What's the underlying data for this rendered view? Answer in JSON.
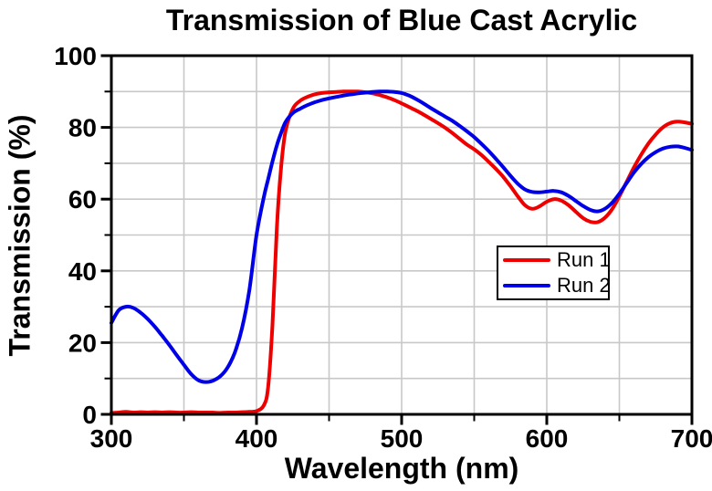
{
  "title": "Transmission of Blue Cast Acrylic",
  "axes": {
    "x": {
      "label": "Wavelength (nm)",
      "min": 300,
      "max": 700,
      "major_ticks": [
        300,
        400,
        500,
        600,
        700
      ],
      "minor_ticks": [
        350,
        450,
        550,
        650
      ],
      "gridlines": [
        350,
        400,
        450,
        500,
        550,
        600,
        650
      ]
    },
    "y": {
      "label": "Transmission (%)",
      "min": 0,
      "max": 100,
      "major_ticks": [
        0,
        20,
        40,
        60,
        80,
        100
      ],
      "minor_ticks": [
        10,
        30,
        50,
        70,
        90
      ],
      "gridlines": [
        10,
        20,
        30,
        40,
        50,
        60,
        70,
        80,
        90
      ]
    }
  },
  "legend": {
    "items": [
      {
        "label": "Run 1",
        "color": "#ef0000"
      },
      {
        "label": "Run 2",
        "color": "#0000e8"
      }
    ]
  },
  "colors": {
    "background": "#ffffff",
    "axis": "#000000",
    "grid": "#c8c8c8",
    "run1": "#ef0000",
    "run2": "#0000e8"
  },
  "chart_data": {
    "type": "line",
    "title": "Transmission of Blue Cast Acrylic",
    "xlabel": "Wavelength (nm)",
    "ylabel": "Transmission (%)",
    "xlim": [
      300,
      700
    ],
    "ylim": [
      0,
      100
    ],
    "grid": true,
    "legend_position": "center-right",
    "x": [
      300,
      305,
      310,
      315,
      320,
      325,
      330,
      335,
      340,
      345,
      350,
      355,
      360,
      365,
      370,
      375,
      380,
      385,
      390,
      395,
      400,
      405,
      408,
      411,
      414,
      417,
      420,
      425,
      430,
      435,
      440,
      445,
      450,
      455,
      460,
      465,
      470,
      475,
      480,
      485,
      490,
      495,
      500,
      505,
      510,
      515,
      520,
      525,
      530,
      535,
      540,
      545,
      550,
      555,
      560,
      565,
      570,
      575,
      580,
      585,
      590,
      595,
      600,
      605,
      610,
      615,
      620,
      625,
      630,
      635,
      640,
      645,
      650,
      655,
      660,
      665,
      670,
      675,
      680,
      685,
      690,
      695,
      700
    ],
    "series": [
      {
        "name": "Run 1",
        "color": "#ef0000",
        "values": [
          0.4,
          0.5,
          0.7,
          0.5,
          0.6,
          0.5,
          0.6,
          0.5,
          0.6,
          0.5,
          0.5,
          0.6,
          0.5,
          0.5,
          0.5,
          0.4,
          0.5,
          0.5,
          0.6,
          0.7,
          0.9,
          2.5,
          7.5,
          25,
          52,
          69,
          79,
          85.2,
          87.4,
          88.5,
          89.2,
          89.6,
          89.8,
          89.9,
          90,
          90,
          90,
          89.8,
          89.5,
          89,
          88.4,
          87.6,
          86.7,
          85.7,
          84.7,
          83.6,
          82.4,
          81.2,
          79.9,
          78.4,
          76.8,
          75.2,
          73.9,
          72.3,
          70.4,
          68.4,
          66.2,
          63.6,
          60.8,
          58.3,
          57.3,
          58,
          59.3,
          60,
          59.6,
          58.3,
          56.5,
          54.7,
          53.7,
          53.6,
          54.8,
          57.2,
          60.8,
          64.8,
          68.8,
          72.4,
          75.5,
          78,
          80,
          81.2,
          81.6,
          81.4,
          81
        ]
      },
      {
        "name": "Run 2",
        "color": "#0000e8",
        "values": [
          25.5,
          29,
          30,
          29.7,
          28.4,
          26.6,
          24.4,
          21.9,
          19.3,
          16.5,
          13.8,
          11.2,
          9.5,
          9,
          9.4,
          10.6,
          13,
          17.2,
          24,
          34.5,
          50,
          60.5,
          65.5,
          70.5,
          75,
          78.5,
          81.5,
          84,
          85.2,
          86.2,
          87,
          87.6,
          88.1,
          88.5,
          88.9,
          89.2,
          89.5,
          89.7,
          89.9,
          90,
          90,
          89.9,
          89.6,
          88.9,
          87.9,
          86.7,
          85.4,
          84.2,
          83,
          81.8,
          80.4,
          78.9,
          77.3,
          75.4,
          73.4,
          71.2,
          68.9,
          66.5,
          64.3,
          62.7,
          62,
          61.9,
          62.1,
          62.3,
          61.9,
          60.9,
          59.5,
          58.1,
          57,
          56.6,
          57.3,
          59,
          61.5,
          64.5,
          67.4,
          69.8,
          71.7,
          73.1,
          74.1,
          74.6,
          74.7,
          74.3,
          73.7
        ]
      }
    ]
  }
}
